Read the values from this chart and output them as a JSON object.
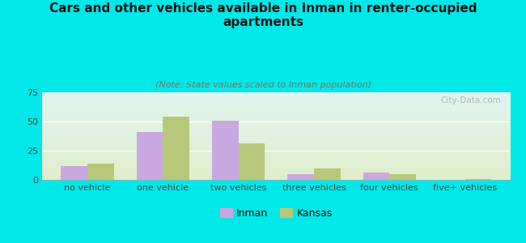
{
  "title": "Cars and other vehicles available in Inman in renter-occupied\napartments",
  "subtitle": "(Note: State values scaled to Inman population)",
  "categories": [
    "no vehicle",
    "one vehicle",
    "two vehicles",
    "three vehicles",
    "four vehicles",
    "five+ vehicles"
  ],
  "inman_values": [
    12,
    41,
    51,
    5,
    6,
    0
  ],
  "kansas_values": [
    14,
    54,
    31,
    10,
    5,
    1
  ],
  "inman_color": "#c9a8e0",
  "kansas_color": "#b8c87a",
  "background_color": "#00e8e8",
  "plot_bg_topleft": "#d8f0f0",
  "plot_bg_bottomright": "#dce8cc",
  "ylim": [
    0,
    75
  ],
  "yticks": [
    0,
    25,
    50,
    75
  ],
  "bar_width": 0.35,
  "watermark": "City-Data.com",
  "legend_inman": "Inman",
  "legend_kansas": "Kansas",
  "title_fontsize": 11,
  "subtitle_fontsize": 8,
  "tick_fontsize": 8
}
